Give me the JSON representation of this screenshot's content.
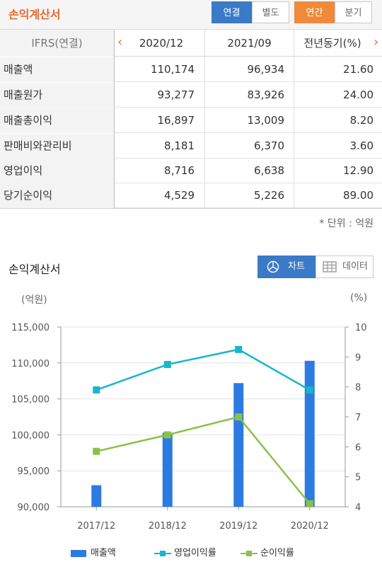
{
  "header": {
    "title": "손익계산서",
    "consolidation_tabs": [
      {
        "label": "연결",
        "active": true
      },
      {
        "label": "별도",
        "active": false
      }
    ],
    "period_tabs": [
      {
        "label": "연간",
        "active": true
      },
      {
        "label": "분기",
        "active": false
      }
    ]
  },
  "table": {
    "header": [
      "IFRS(연결)",
      "2020/12",
      "2021/09",
      "전년동기(%)"
    ],
    "prev_arrow": "‹",
    "next_arrow": "›",
    "rows": [
      {
        "label": "매출액",
        "values": [
          "110,174",
          "96,934",
          "21.60"
        ]
      },
      {
        "label": "매출원가",
        "values": [
          "93,277",
          "83,926",
          "24.00"
        ]
      },
      {
        "label": "매출총이익",
        "values": [
          "16,897",
          "13,009",
          "8.20"
        ]
      },
      {
        "label": "판매비와관리비",
        "values": [
          "8,181",
          "6,370",
          "3.60"
        ]
      },
      {
        "label": "영업이익",
        "values": [
          "8,716",
          "6,638",
          "12.90"
        ]
      },
      {
        "label": "당기순이익",
        "values": [
          "4,529",
          "5,226",
          "89.00"
        ]
      }
    ],
    "unit_note": "* 단위 : 억원"
  },
  "chart_section": {
    "title": "손익계산서",
    "view_tabs": [
      {
        "label": "차트",
        "active": true,
        "icon": "pie-chart-icon"
      },
      {
        "label": "데이터",
        "active": false,
        "icon": "table-grid-icon"
      }
    ]
  },
  "colors": {
    "accent_orange": "#e8692f",
    "active_blue": "#3a7ac6",
    "bar": "#2d7be0",
    "op_margin": "#17b6c9",
    "net_margin": "#8cc04a"
  },
  "chart_data": {
    "type": "bar",
    "categories": [
      "2017/12",
      "2018/12",
      "2019/12",
      "2020/12"
    ],
    "y_left_label": "(억원)",
    "y_right_label": "(%)",
    "y_left_ticks": [
      "90,000",
      "95,000",
      "100,000",
      "105,000",
      "110,000",
      "115,000"
    ],
    "y_right_ticks": [
      "4",
      "5",
      "6",
      "7",
      "8",
      "9",
      "10"
    ],
    "ylim_left": [
      90000,
      115000
    ],
    "ylim_right": [
      4,
      10
    ],
    "grid": true,
    "legend_position": "bottom",
    "series": [
      {
        "name": "매출액",
        "kind": "bar",
        "axis": "left",
        "values": [
          93000,
          100300,
          107200,
          110300
        ]
      },
      {
        "name": "영업이익률",
        "kind": "line",
        "axis": "right",
        "values": [
          7.9,
          8.75,
          9.25,
          7.9
        ]
      },
      {
        "name": "순이익률",
        "kind": "line",
        "axis": "right",
        "values": [
          5.85,
          6.4,
          7.0,
          4.1
        ]
      }
    ]
  }
}
